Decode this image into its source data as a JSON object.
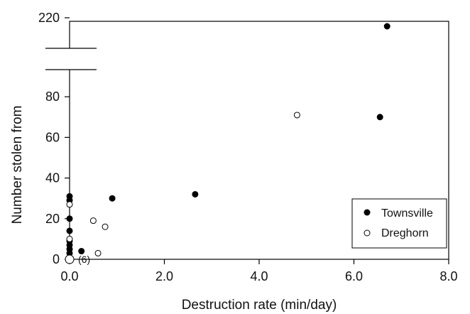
{
  "chart_data": {
    "type": "scatter",
    "xlabel": "Destruction rate (min/day)",
    "ylabel": "Number stolen from",
    "xlim": [
      0,
      8
    ],
    "ylim": [
      0,
      100
    ],
    "x_ticks": [
      0,
      2,
      4,
      6,
      8
    ],
    "x_tick_labels": [
      "0.0",
      "2.0",
      "4.0",
      "6.0",
      "8.0"
    ],
    "y_ticks": [
      0,
      20,
      40,
      60,
      80,
      220
    ],
    "y_tick_labels": [
      "0",
      "20",
      "40",
      "60",
      "80",
      "220"
    ],
    "axis_break": "y-axis broken between 100 and 200",
    "grid": false,
    "legend_position": "bottom-right",
    "series": [
      {
        "name": "Townsville",
        "marker": "filled-circle",
        "color": "#000000",
        "points": [
          {
            "x": 0.0,
            "y": 3
          },
          {
            "x": 0.0,
            "y": 5
          },
          {
            "x": 0.0,
            "y": 7
          },
          {
            "x": 0.0,
            "y": 9
          },
          {
            "x": 0.0,
            "y": 14
          },
          {
            "x": 0.0,
            "y": 20
          },
          {
            "x": 0.0,
            "y": 29
          },
          {
            "x": 0.0,
            "y": 31
          },
          {
            "x": 0.25,
            "y": 4
          },
          {
            "x": 0.9,
            "y": 30
          },
          {
            "x": 2.65,
            "y": 32
          },
          {
            "x": 6.55,
            "y": 70
          },
          {
            "x": 6.7,
            "y": 217
          }
        ]
      },
      {
        "name": "Dreghorn",
        "marker": "open-circle",
        "color": "#000000",
        "points": [
          {
            "x": 0.0,
            "y": 0
          },
          {
            "x": 0.0,
            "y": 27
          },
          {
            "x": 0.0,
            "y": 10
          },
          {
            "x": 0.5,
            "y": 19
          },
          {
            "x": 0.6,
            "y": 3
          },
          {
            "x": 0.75,
            "y": 16
          },
          {
            "x": 4.8,
            "y": 71
          }
        ]
      }
    ],
    "annotations": [
      {
        "text": "(6)",
        "x": 0.0,
        "y": 0
      }
    ]
  }
}
